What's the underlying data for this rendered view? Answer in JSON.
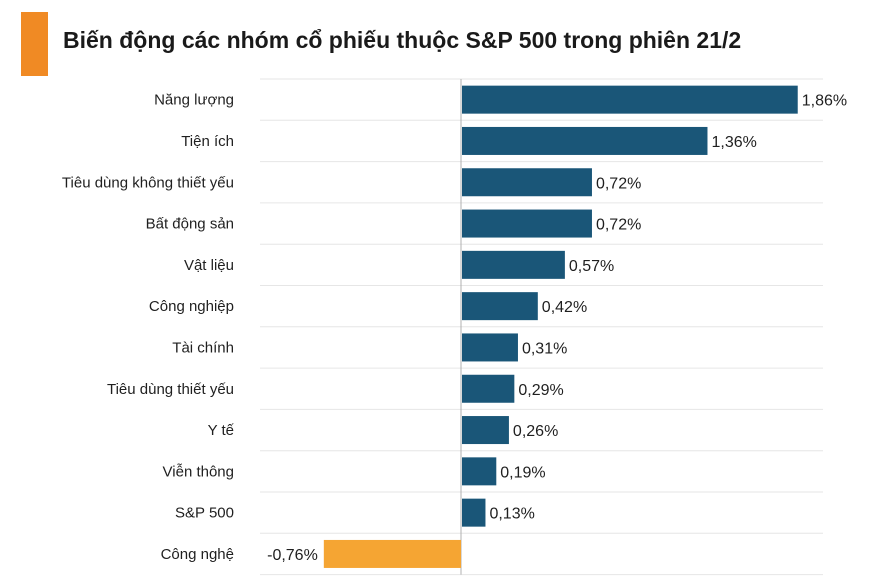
{
  "chart_data": {
    "type": "bar",
    "orientation": "horizontal",
    "title": "Biến động các nhóm cổ phiếu thuộc S&P 500 trong phiên 21/2",
    "categories": [
      "Năng lượng",
      "Tiện ích",
      "Tiêu dùng không thiết yếu",
      "Bất động sản",
      "Vật liệu",
      "Công nghiệp",
      "Tài chính",
      "Tiêu dùng thiết yếu",
      "Y tế",
      "Viễn thông",
      "S&P 500",
      "Công nghệ"
    ],
    "values": [
      1.86,
      1.36,
      0.72,
      0.72,
      0.57,
      0.42,
      0.31,
      0.29,
      0.26,
      0.19,
      0.13,
      -0.76
    ],
    "value_labels": [
      "1,86%",
      "1,36%",
      "0,72%",
      "0,72%",
      "0,57%",
      "0,42%",
      "0,31%",
      "0,29%",
      "0,26%",
      "0,19%",
      "0,13%",
      "-0,76%"
    ],
    "xlabel": "",
    "ylabel": "",
    "xlim": [
      -0.76,
      2.0
    ],
    "grid": true,
    "legend": "none",
    "colors": {
      "positive": "#1a5678",
      "negative": "#f5a533",
      "accent": "#f08a24",
      "grid": "#e6e6e6",
      "axis": "#b0b0b0"
    }
  }
}
